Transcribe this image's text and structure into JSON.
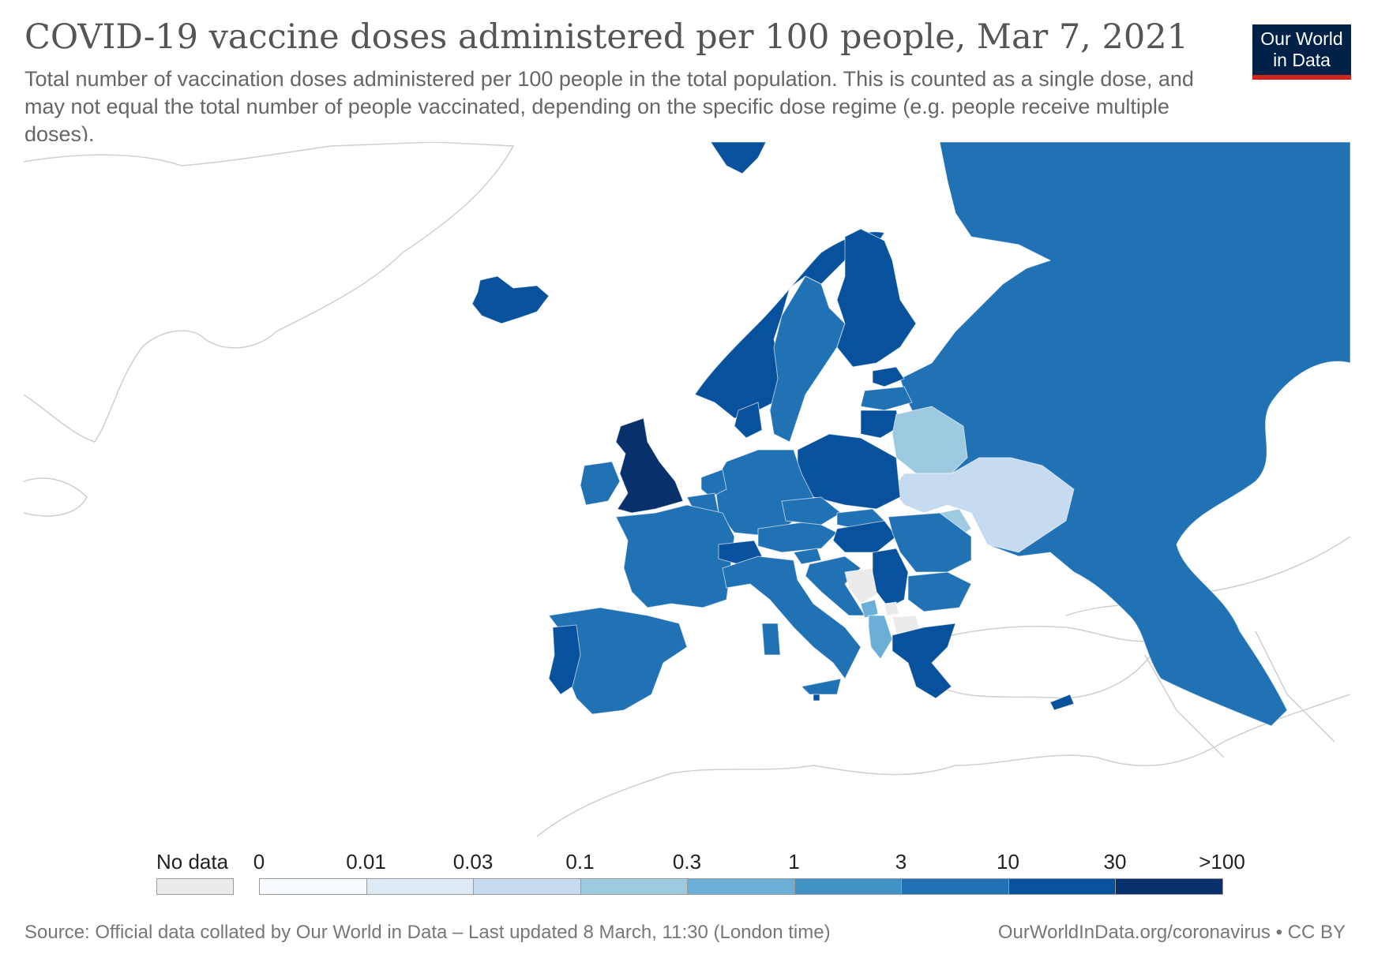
{
  "title": "COVID-19 vaccine doses administered per 100 people, Mar 7, 2021",
  "subtitle": "Total number of vaccination doses administered per 100 people in the total population. This is counted as a single dose, and may not equal the total number of people vaccinated, depending on the specific dose regime (e.g. people receive multiple doses).",
  "logo": {
    "line1": "Our World",
    "line2": "in Data",
    "bg_color": "#002147",
    "accent_color": "#ce261e"
  },
  "legend": {
    "no_data_label": "No data",
    "no_data_color": "#ebebeb",
    "ticks": [
      "0",
      "0.01",
      "0.03",
      "0.1",
      "0.3",
      "1",
      "3",
      "10",
      "30",
      ">100"
    ],
    "colors": [
      "#f7fbff",
      "#deebf7",
      "#c6dbef",
      "#9ecae1",
      "#6baed6",
      "#4292c6",
      "#2171b5",
      "#08519c",
      "#08306b"
    ]
  },
  "map": {
    "land_fill_no_region": "#ffffff",
    "border_color": "#cccccc",
    "ocean_color": "#ffffff",
    "regions": [
      {
        "name": "Russia",
        "color": "#2171b5"
      },
      {
        "name": "Norway",
        "color": "#08519c"
      },
      {
        "name": "Sweden",
        "color": "#2171b5"
      },
      {
        "name": "Finland",
        "color": "#08519c"
      },
      {
        "name": "Iceland",
        "color": "#08519c"
      },
      {
        "name": "Svalbard",
        "color": "#08519c"
      },
      {
        "name": "Estonia",
        "color": "#08519c"
      },
      {
        "name": "Latvia",
        "color": "#2171b5"
      },
      {
        "name": "Lithuania",
        "color": "#08519c"
      },
      {
        "name": "Belarus",
        "color": "#9ecae1"
      },
      {
        "name": "Ukraine",
        "color": "#c6dbef"
      },
      {
        "name": "Moldova",
        "color": "#9ecae1"
      },
      {
        "name": "Poland",
        "color": "#08519c"
      },
      {
        "name": "Germany",
        "color": "#2171b5"
      },
      {
        "name": "Denmark",
        "color": "#08519c"
      },
      {
        "name": "Netherlands",
        "color": "#2171b5"
      },
      {
        "name": "Belgium",
        "color": "#2171b5"
      },
      {
        "name": "France",
        "color": "#2171b5"
      },
      {
        "name": "Switzerland",
        "color": "#08519c"
      },
      {
        "name": "Austria",
        "color": "#2171b5"
      },
      {
        "name": "Czechia",
        "color": "#2171b5"
      },
      {
        "name": "Slovakia",
        "color": "#2171b5"
      },
      {
        "name": "Hungary",
        "color": "#08519c"
      },
      {
        "name": "Slovenia",
        "color": "#2171b5"
      },
      {
        "name": "Croatia",
        "color": "#2171b5"
      },
      {
        "name": "Bosnia and Herzegovina",
        "color": "#ebebeb"
      },
      {
        "name": "Serbia",
        "color": "#08519c"
      },
      {
        "name": "Montenegro",
        "color": "#6baed6"
      },
      {
        "name": "Kosovo",
        "color": "#ebebeb"
      },
      {
        "name": "North Macedonia",
        "color": "#ebebeb"
      },
      {
        "name": "Albania",
        "color": "#6baed6"
      },
      {
        "name": "Romania",
        "color": "#2171b5"
      },
      {
        "name": "Bulgaria",
        "color": "#2171b5"
      },
      {
        "name": "Greece",
        "color": "#08519c"
      },
      {
        "name": "Italy",
        "color": "#2171b5"
      },
      {
        "name": "Spain",
        "color": "#2171b5"
      },
      {
        "name": "Portugal",
        "color": "#08519c"
      },
      {
        "name": "United Kingdom",
        "color": "#08306b"
      },
      {
        "name": "Ireland",
        "color": "#2171b5"
      },
      {
        "name": "Cyprus",
        "color": "#08519c"
      },
      {
        "name": "Malta",
        "color": "#08519c"
      }
    ]
  },
  "footer": {
    "source": "Source: Official data collated by Our World in Data – Last updated 8 March, 11:30 (London time)",
    "url": "OurWorldInData.org/coronavirus • CC BY"
  }
}
